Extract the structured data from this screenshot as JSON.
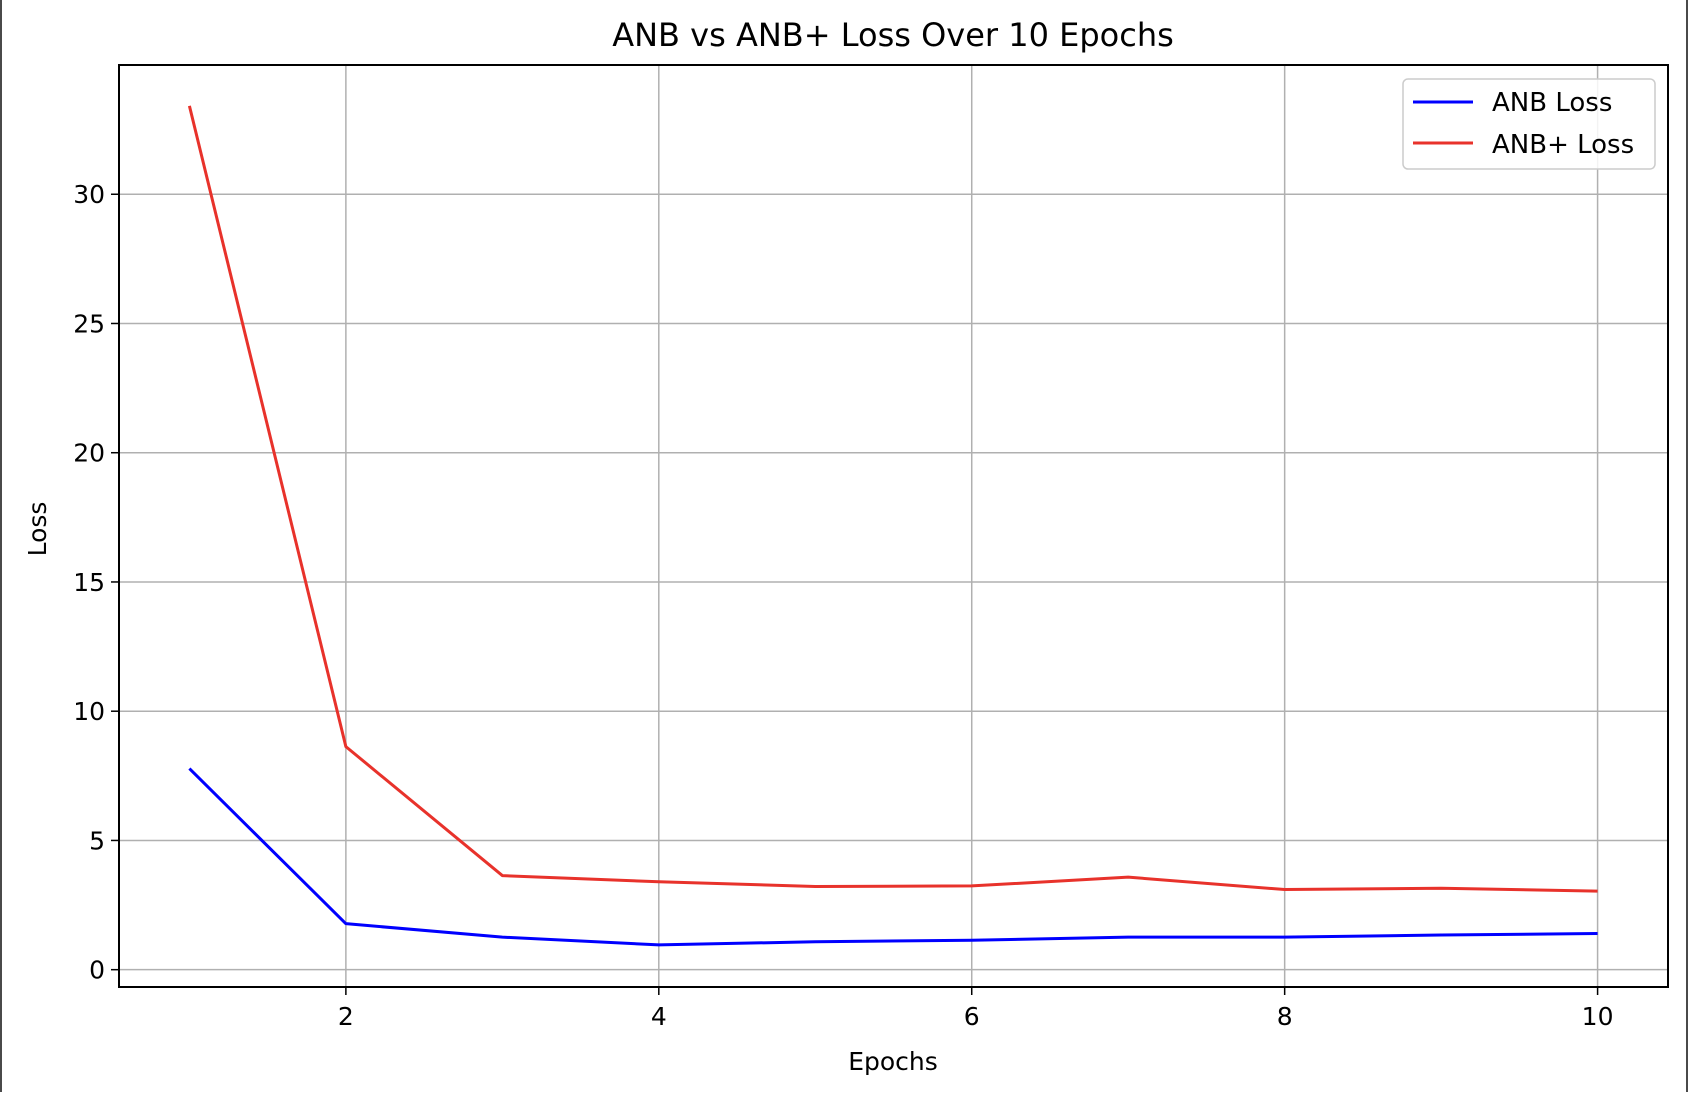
{
  "chart_data": {
    "type": "line",
    "title": "ANB vs ANB+ Loss Over 10 Epochs",
    "xlabel": "Epochs",
    "ylabel": "Loss",
    "x": [
      1,
      2,
      3,
      4,
      5,
      6,
      7,
      8,
      9,
      10
    ],
    "xlim": [
      0.55,
      10.45
    ],
    "ylim": [
      -0.67,
      35.0
    ],
    "xticks": [
      2,
      4,
      6,
      8,
      10
    ],
    "yticks": [
      0,
      5,
      10,
      15,
      20,
      25,
      30
    ],
    "grid": true,
    "legend_position": "top-right",
    "series": [
      {
        "name": "ANB Loss",
        "color": "#0000ff",
        "values": [
          7.78,
          1.78,
          1.26,
          0.96,
          1.08,
          1.14,
          1.26,
          1.26,
          1.34,
          1.4
        ]
      },
      {
        "name": "ANB+ Loss",
        "color": "#e8322b",
        "values": [
          33.42,
          8.63,
          3.64,
          3.4,
          3.22,
          3.24,
          3.58,
          3.1,
          3.15,
          3.04
        ]
      }
    ]
  }
}
